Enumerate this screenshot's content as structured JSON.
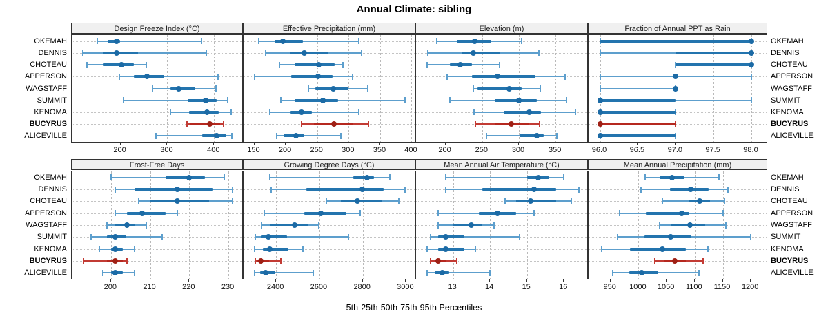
{
  "title": "Annual Climate: sibling",
  "caption": "5th-25th-50th-75th-95th Percentiles",
  "sites": [
    "OKEMAH",
    "DENNIS",
    "CHOTEAU",
    "APPERSON",
    "WAGSTAFF",
    "SUMMIT",
    "KENOMA",
    "BUCYRUS",
    "ALICEVILLE"
  ],
  "highlight_site": "BUCYRUS",
  "percentiles": [
    "5th",
    "25th",
    "50th",
    "75th",
    "95th"
  ],
  "colors": {
    "blue_whisker": "#5d9fcd",
    "blue_iqr": "#2374ae",
    "blue_dot": "#1b6aa5",
    "red_whisker": "#c23b34",
    "red_iqr": "#b5281f",
    "red_dot": "#9f2015",
    "header_bg": "#f0f0f0",
    "grid": "#bdbdbd"
  },
  "chart_data": [
    {
      "type": "dotplot-percentile",
      "title": "Design Freeze Index (°C)",
      "xlim": [
        96,
        460
      ],
      "ticks": [
        200,
        300,
        400
      ],
      "tick_labels": [
        "200",
        "300",
        "400"
      ],
      "values": [
        [
          150,
          173,
          192,
          199,
          373
        ],
        [
          120,
          162,
          192,
          237,
          383
        ],
        [
          129,
          164,
          202,
          229,
          255
        ],
        [
          198,
          228,
          257,
          293,
          409
        ],
        [
          269,
          307,
          325,
          360,
          404
        ],
        [
          207,
          343,
          382,
          406,
          429
        ],
        [
          306,
          347,
          385,
          410,
          437
        ],
        [
          342,
          350,
          391,
          413,
          420
        ],
        [
          275,
          375,
          406,
          426,
          438
        ]
      ]
    },
    {
      "type": "dotplot-percentile",
      "title": "Effective Precipitation (mm)",
      "xlim": [
        133,
        405
      ],
      "ticks": [
        150,
        200,
        250,
        300,
        350,
        400
      ],
      "tick_labels": [
        "150",
        "200",
        "250",
        "300",
        "350",
        "400"
      ],
      "values": [
        [
          157,
          182,
          196,
          227,
          316
        ],
        [
          168,
          207,
          230,
          267,
          320
        ],
        [
          190,
          214,
          253,
          278,
          291
        ],
        [
          151,
          209,
          251,
          274,
          306
        ],
        [
          236,
          247,
          276,
          300,
          330
        ],
        [
          192,
          214,
          259,
          283,
          390
        ],
        [
          175,
          207,
          225,
          241,
          316
        ],
        [
          225,
          245,
          277,
          306,
          331
        ],
        [
          186,
          197,
          216,
          230,
          288
        ]
      ]
    },
    {
      "type": "dotplot-percentile",
      "title": "Elevation (m)",
      "xlim": [
        160,
        393
      ],
      "ticks": [
        200,
        250,
        300,
        350
      ],
      "tick_labels": [
        "200",
        "250",
        "300",
        "350"
      ],
      "values": [
        [
          188,
          215,
          240,
          262,
          304
        ],
        [
          176,
          223,
          238,
          274,
          327
        ],
        [
          175,
          206,
          220,
          236,
          274
        ],
        [
          202,
          236,
          271,
          323,
          363
        ],
        [
          238,
          244,
          287,
          304,
          329
        ],
        [
          206,
          267,
          300,
          324,
          365
        ],
        [
          239,
          279,
          314,
          330,
          377
        ],
        [
          241,
          268,
          290,
          314,
          328
        ],
        [
          256,
          301,
          324,
          334,
          352
        ]
      ]
    },
    {
      "type": "dotplot-percentile",
      "title": "Fraction of Annual PPT as Rain",
      "xlim": [
        95.85,
        98.2
      ],
      "ticks": [
        96.0,
        96.5,
        97.0,
        97.5,
        98.0
      ],
      "tick_labels": [
        "96.0",
        "96.5",
        "97.0",
        "97.5",
        "98.0"
      ],
      "values": [
        [
          96,
          96,
          98,
          98,
          98
        ],
        [
          96,
          97,
          98,
          98,
          98
        ],
        [
          97,
          97,
          98,
          98,
          98
        ],
        [
          96,
          97,
          97,
          97,
          98
        ],
        [
          96,
          97,
          97,
          97,
          97
        ],
        [
          96,
          96,
          96,
          97,
          98
        ],
        [
          96,
          96,
          96,
          97,
          97
        ],
        [
          96,
          96,
          96,
          97,
          97
        ],
        [
          96,
          96,
          96,
          97,
          97
        ]
      ]
    },
    {
      "type": "dotplot-percentile",
      "title": "Frost-Free Days",
      "xlim": [
        190,
        233.5
      ],
      "ticks": [
        200,
        210,
        220,
        230
      ],
      "tick_labels": [
        "200",
        "210",
        "220",
        "230"
      ],
      "values": [
        [
          200,
          214,
          220,
          224,
          229
        ],
        [
          201,
          206,
          217,
          226,
          231
        ],
        [
          207,
          210,
          217,
          225,
          231
        ],
        [
          201,
          204,
          208,
          214,
          217
        ],
        [
          199,
          201,
          204,
          206,
          209
        ],
        [
          195,
          199,
          201,
          204,
          213
        ],
        [
          197,
          200,
          201,
          203,
          206
        ],
        [
          193,
          199,
          201,
          203,
          204
        ],
        [
          198,
          200,
          201,
          203,
          206
        ]
      ]
    },
    {
      "type": "dotplot-percentile",
      "title": "Growing Degree Days (°C)",
      "xlim": [
        2250,
        3040
      ],
      "ticks": [
        2400,
        2600,
        2800,
        3000
      ],
      "tick_labels": [
        "2400",
        "2600",
        "2800",
        "3000"
      ],
      "values": [
        [
          2370,
          2755,
          2819,
          2852,
          2924
        ],
        [
          2376,
          2539,
          2797,
          2898,
          2996
        ],
        [
          2632,
          2700,
          2776,
          2887,
          2966
        ],
        [
          2344,
          2529,
          2608,
          2726,
          2787
        ],
        [
          2334,
          2374,
          2486,
          2550,
          2597
        ],
        [
          2305,
          2331,
          2365,
          2450,
          2734
        ],
        [
          2302,
          2339,
          2370,
          2458,
          2523
        ],
        [
          2304,
          2315,
          2331,
          2368,
          2423
        ],
        [
          2302,
          2326,
          2352,
          2397,
          2573
        ]
      ]
    },
    {
      "type": "dotplot-percentile",
      "title": "Mean Annual Air Temperature (°C)",
      "xlim": [
        12.0,
        16.63
      ],
      "ticks": [
        13,
        14,
        15,
        16
      ],
      "tick_labels": [
        "13",
        "14",
        "15",
        "16"
      ],
      "values": [
        [
          12.8,
          15.0,
          15.3,
          15.6,
          16.0
        ],
        [
          12.8,
          13.8,
          15.2,
          15.8,
          16.4
        ],
        [
          14.4,
          14.7,
          15.1,
          15.8,
          16.2
        ],
        [
          12.6,
          13.7,
          14.2,
          14.7,
          15.2
        ],
        [
          12.6,
          13.0,
          13.5,
          13.8,
          14.1
        ],
        [
          12.4,
          12.6,
          12.8,
          13.3,
          14.8
        ],
        [
          12.3,
          12.6,
          12.8,
          13.3,
          13.6
        ],
        [
          12.4,
          12.5,
          12.6,
          12.8,
          13.1
        ],
        [
          12.3,
          12.5,
          12.7,
          12.9,
          14.0
        ]
      ]
    },
    {
      "type": "dotplot-percentile",
      "title": "Mean Annual Precipitation (mm)",
      "xlim": [
        911,
        1228
      ],
      "ticks": [
        950,
        1000,
        1050,
        1100,
        1150,
        1200
      ],
      "tick_labels": [
        "950",
        "1000",
        "1050",
        "1100",
        "1150",
        "1200"
      ],
      "values": [
        [
          1012,
          1037,
          1059,
          1082,
          1143
        ],
        [
          1004,
          1056,
          1093,
          1125,
          1159
        ],
        [
          1043,
          1090,
          1109,
          1127,
          1153
        ],
        [
          966,
          1013,
          1077,
          1090,
          1150
        ],
        [
          1037,
          1058,
          1091,
          1119,
          1156
        ],
        [
          963,
          1011,
          1057,
          1094,
          1200
        ],
        [
          934,
          985,
          1043,
          1084,
          1123
        ],
        [
          1029,
          1046,
          1064,
          1084,
          1115
        ],
        [
          954,
          983,
          1005,
          1035,
          1107
        ]
      ]
    }
  ]
}
